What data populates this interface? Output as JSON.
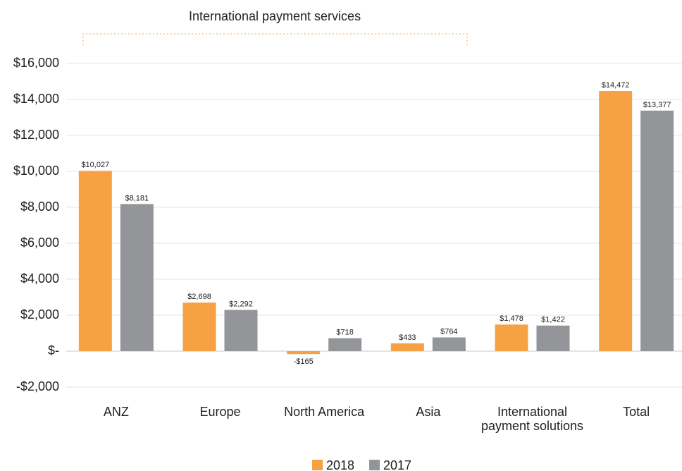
{
  "chart_data": {
    "type": "bar",
    "annotation": "International payment services",
    "categories": [
      "ANZ",
      "Europe",
      "North America",
      "Asia",
      "International payment solutions",
      "Total"
    ],
    "series": [
      {
        "name": "2018",
        "color": "#f7a145",
        "values": [
          10027,
          2698,
          -165,
          433,
          1478,
          14472
        ],
        "value_labels": [
          "$10,027",
          "$2,698",
          "-$165",
          "$433",
          "$1,478",
          "$14,472"
        ]
      },
      {
        "name": "2017",
        "color": "#939598",
        "values": [
          8181,
          2292,
          718,
          764,
          1422,
          13377
        ],
        "value_labels": [
          "$8,181",
          "$2,292",
          "$718",
          "$764",
          "$1,422",
          "$13,377"
        ]
      }
    ],
    "ylim": [
      -2000,
      16000
    ],
    "yticks": [
      {
        "value": -2000,
        "label": "-$2,000"
      },
      {
        "value": 0,
        "label": "$-"
      },
      {
        "value": 2000,
        "label": "$2,000"
      },
      {
        "value": 4000,
        "label": "$4,000"
      },
      {
        "value": 6000,
        "label": "$6,000"
      },
      {
        "value": 8000,
        "label": "$8,000"
      },
      {
        "value": 10000,
        "label": "$10,000"
      },
      {
        "value": 12000,
        "label": "$12,000"
      },
      {
        "value": 14000,
        "label": "$14,000"
      },
      {
        "value": 16000,
        "label": "$16,000"
      }
    ],
    "grid": true,
    "legend": "bottom"
  }
}
